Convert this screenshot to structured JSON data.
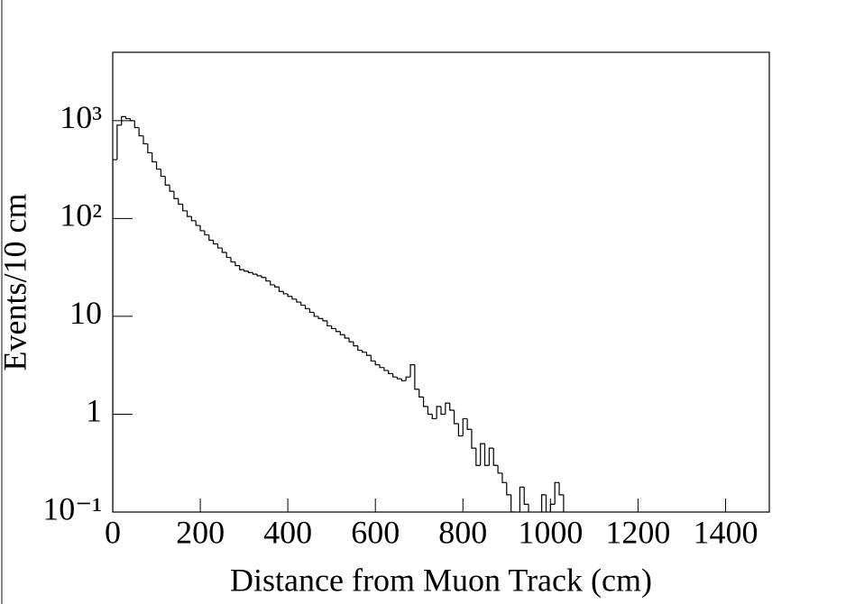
{
  "chart_data": {
    "type": "histogram",
    "xlabel": "Distance from Muon Track (cm)",
    "ylabel": "Events/10 cm",
    "color": "#000000",
    "log_y": true,
    "xlim": [
      0,
      1500
    ],
    "ylim": [
      0.1,
      5000
    ],
    "xticks": [
      0,
      200,
      400,
      600,
      800,
      1000,
      1200,
      1400
    ],
    "yticks": [
      {
        "value": 0.1,
        "label": "10⁻¹"
      },
      1,
      10,
      {
        "value": 100,
        "label": "10²"
      },
      {
        "value": 1000,
        "label": "10³"
      }
    ],
    "bins": [
      0,
      10,
      20,
      30,
      40,
      50,
      60,
      70,
      80,
      90,
      100,
      110,
      120,
      130,
      140,
      150,
      160,
      170,
      180,
      190,
      200,
      210,
      220,
      230,
      240,
      250,
      260,
      270,
      280,
      290,
      300,
      310,
      320,
      330,
      340,
      350,
      360,
      370,
      380,
      390,
      400,
      410,
      420,
      430,
      440,
      450,
      460,
      470,
      480,
      490,
      500,
      510,
      520,
      530,
      540,
      550,
      560,
      570,
      580,
      590,
      600,
      610,
      620,
      630,
      640,
      650,
      660,
      670,
      680,
      690,
      700,
      710,
      720,
      730,
      740,
      750,
      760,
      770,
      780,
      790,
      800,
      810,
      820,
      830,
      840,
      850,
      860,
      870,
      880,
      890,
      900,
      910,
      920,
      930,
      940,
      950,
      960,
      970,
      980,
      990,
      1000,
      1010,
      1020,
      1030,
      1040,
      1050
    ],
    "values": [
      400,
      900,
      1100,
      1050,
      1000,
      850,
      700,
      580,
      470,
      380,
      320,
      270,
      220,
      190,
      160,
      140,
      120,
      105,
      95,
      85,
      75,
      68,
      60,
      55,
      50,
      45,
      40,
      36,
      33,
      30,
      29,
      28,
      27,
      26,
      25,
      23,
      21,
      20,
      18,
      17,
      16,
      15,
      14,
      13,
      12,
      11,
      10,
      9.5,
      9,
      8,
      7.5,
      7,
      6.5,
      6,
      5.5,
      5,
      4.5,
      4.3,
      4,
      3.5,
      3.2,
      3,
      2.8,
      2.6,
      2.4,
      2.3,
      2.2,
      2.4,
      3.2,
      1.8,
      1.5,
      1.2,
      1.0,
      0.9,
      1.2,
      1.0,
      1.3,
      1.1,
      0.8,
      0.6,
      0.9,
      0.7,
      0.45,
      0.3,
      0.5,
      0.3,
      0.45,
      0.3,
      0.25,
      0.2,
      0.15,
      0.1,
      0.08,
      0.18,
      0.12,
      0.08,
      0,
      0,
      0.15,
      0.08,
      0.12,
      0.2,
      0.15,
      0.08,
      0
    ]
  }
}
